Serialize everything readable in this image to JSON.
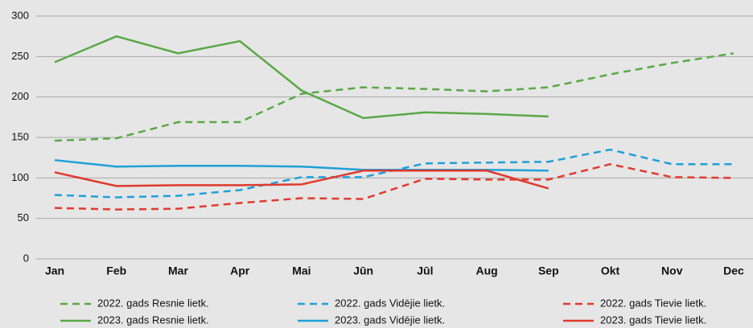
{
  "chart_data": {
    "type": "line",
    "categories": [
      "Jan",
      "Feb",
      "Mar",
      "Apr",
      "Mai",
      "Jūn",
      "Jūl",
      "Aug",
      "Sep",
      "Okt",
      "Nov",
      "Dec"
    ],
    "ylim": [
      0,
      300
    ],
    "yticks": [
      0,
      50,
      100,
      150,
      200,
      250,
      300
    ],
    "grid": true,
    "legend": "bottom",
    "series": [
      {
        "name": "2022. gads Resnie lietk.",
        "color": "#5aa847",
        "style": "dashed",
        "values": [
          146,
          149,
          169,
          169,
          204,
          212,
          210,
          207,
          212,
          228,
          242,
          254
        ]
      },
      {
        "name": "2023. gads Resnie lietk.",
        "color": "#5aa847",
        "style": "solid",
        "values": [
          243,
          275,
          254,
          269,
          208,
          174,
          181,
          179,
          176,
          null,
          null,
          null
        ]
      },
      {
        "name": "2022. gads Vidējie lietk.",
        "color": "#1ea0d8",
        "style": "dashed",
        "values": [
          79,
          76,
          78,
          85,
          101,
          101,
          118,
          119,
          120,
          135,
          117,
          117
        ]
      },
      {
        "name": "2023. gads Vidējie lietk.",
        "color": "#1ea0d8",
        "style": "solid",
        "values": [
          122,
          114,
          115,
          115,
          114,
          110,
          110,
          110,
          109,
          null,
          null,
          null
        ]
      },
      {
        "name": "2022. gads Tievie lietk.",
        "color": "#e03a2e",
        "style": "dashed",
        "values": [
          63,
          61,
          62,
          69,
          75,
          74,
          99,
          98,
          98,
          117,
          101,
          100
        ]
      },
      {
        "name": "2023. gads Tievie lietk.",
        "color": "#e03a2e",
        "style": "solid",
        "values": [
          107,
          90,
          91,
          91,
          92,
          109,
          109,
          109,
          87,
          null,
          null,
          null
        ]
      }
    ]
  }
}
